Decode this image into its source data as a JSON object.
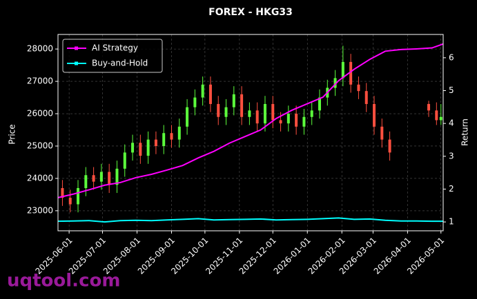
{
  "chart_data": {
    "type": "candlestick",
    "title": "FOREX - HKG33",
    "ylabel": "Price",
    "y2label": "Return",
    "watermark": "uqtool.com",
    "xlim": [
      "2025-05-22",
      "2026-05-03"
    ],
    "xticks": [
      "2025-06-01",
      "2025-07-01",
      "2025-08-01",
      "2025-09-01",
      "2025-10-01",
      "2025-11-01",
      "2025-12-01",
      "2026-01-01",
      "2026-02-01",
      "2026-03-01",
      "2026-04-01",
      "2026-05-01"
    ],
    "ylim": [
      22380,
      28450
    ],
    "yticks": [
      23000,
      24000,
      25000,
      26000,
      27000,
      28000
    ],
    "y2lim": [
      0.73,
      6.71
    ],
    "y2ticks": [
      1,
      2,
      3,
      4,
      5,
      6
    ],
    "grid": true,
    "legend": "upper left",
    "up_color": "#5cff3c",
    "down_color": "#ff4f3f",
    "candles": {
      "x": [
        "2025-05-26",
        "2025-06-02",
        "2025-06-09",
        "2025-06-16",
        "2025-06-23",
        "2025-06-30",
        "2025-07-07",
        "2025-07-14",
        "2025-07-21",
        "2025-07-28",
        "2025-08-04",
        "2025-08-11",
        "2025-08-18",
        "2025-08-25",
        "2025-09-01",
        "2025-09-08",
        "2025-09-15",
        "2025-09-22",
        "2025-09-29",
        "2025-10-06",
        "2025-10-13",
        "2025-10-20",
        "2025-10-27",
        "2025-11-03",
        "2025-11-10",
        "2025-11-17",
        "2025-11-24",
        "2025-12-01",
        "2025-12-08",
        "2025-12-15",
        "2025-12-22",
        "2025-12-29",
        "2026-01-05",
        "2026-01-12",
        "2026-01-19",
        "2026-01-26",
        "2026-02-02",
        "2026-02-09",
        "2026-02-16",
        "2026-02-23",
        "2026-03-02",
        "2026-03-09",
        "2026-03-16",
        "2026-04-20",
        "2026-04-27",
        "2026-05-01"
      ],
      "open": [
        23700,
        23400,
        23200,
        23700,
        24100,
        23900,
        24200,
        23800,
        24300,
        24800,
        25100,
        24700,
        25200,
        25000,
        25400,
        25200,
        25600,
        26200,
        26500,
        26900,
        26300,
        25900,
        26200,
        26600,
        25900,
        26100,
        25700,
        26300,
        25800,
        25700,
        26000,
        25600,
        25900,
        26100,
        26500,
        26800,
        27100,
        27600,
        26900,
        26700,
        26300,
        25600,
        25200,
        26300,
        26100,
        25800
      ],
      "high": [
        23950,
        23650,
        23950,
        24350,
        24350,
        24450,
        24450,
        24550,
        25050,
        25350,
        25350,
        25450,
        25450,
        25650,
        25650,
        25850,
        26450,
        26750,
        27150,
        27150,
        26550,
        26450,
        26850,
        26850,
        26350,
        26350,
        26550,
        26550,
        26050,
        26250,
        26250,
        26150,
        26350,
        26750,
        27050,
        27350,
        28100,
        27850,
        27150,
        26950,
        26550,
        25850,
        25450,
        26400,
        26350,
        26300
      ],
      "low": [
        23150,
        22950,
        22950,
        23450,
        23650,
        23650,
        23550,
        23550,
        24050,
        24550,
        24450,
        24450,
        24750,
        24750,
        24950,
        24950,
        25350,
        25950,
        26250,
        26050,
        25650,
        25650,
        25950,
        25650,
        25650,
        25450,
        25450,
        25550,
        25450,
        25450,
        25350,
        25350,
        25650,
        25850,
        26250,
        26550,
        26850,
        26650,
        26450,
        26050,
        25350,
        24950,
        24550,
        25900,
        25650,
        25650
      ],
      "close": [
        23400,
        23200,
        23700,
        24100,
        23900,
        24200,
        23800,
        24300,
        24800,
        25100,
        24700,
        25200,
        25000,
        25400,
        25200,
        25600,
        26200,
        26500,
        26900,
        26300,
        25900,
        26200,
        26600,
        25900,
        26100,
        25700,
        26300,
        25800,
        25700,
        26000,
        25600,
        25900,
        26100,
        26500,
        26800,
        27100,
        27600,
        26900,
        26700,
        26300,
        25600,
        25200,
        24800,
        26100,
        25800,
        25900
      ]
    },
    "x": [
      "2025-05-22",
      "2025-06-05",
      "2025-06-19",
      "2025-07-03",
      "2025-07-17",
      "2025-07-31",
      "2025-08-14",
      "2025-08-28",
      "2025-09-11",
      "2025-09-25",
      "2025-10-09",
      "2025-10-23",
      "2025-11-06",
      "2025-11-20",
      "2025-12-04",
      "2025-12-18",
      "2026-01-01",
      "2026-01-15",
      "2026-01-29",
      "2026-02-12",
      "2026-02-26",
      "2026-03-12",
      "2026-03-26",
      "2026-04-09",
      "2026-04-23",
      "2026-05-03"
    ],
    "series": [
      {
        "name": "AI Strategy",
        "color": "#ff00ff",
        "axis": "y2",
        "values": [
          1.74,
          1.85,
          1.98,
          2.12,
          2.2,
          2.35,
          2.45,
          2.58,
          2.72,
          2.95,
          3.15,
          3.4,
          3.6,
          3.8,
          4.15,
          4.4,
          4.6,
          4.8,
          5.3,
          5.65,
          5.95,
          6.2,
          6.25,
          6.27,
          6.3,
          6.42
        ]
      },
      {
        "name": "Buy-and-Hold",
        "color": "#00ffff",
        "axis": "y2",
        "values": [
          1.02,
          1.03,
          1.04,
          1.0,
          1.04,
          1.05,
          1.04,
          1.06,
          1.08,
          1.1,
          1.06,
          1.07,
          1.08,
          1.09,
          1.06,
          1.07,
          1.08,
          1.1,
          1.12,
          1.08,
          1.09,
          1.05,
          1.03,
          1.03,
          1.02,
          1.02
        ]
      }
    ]
  }
}
